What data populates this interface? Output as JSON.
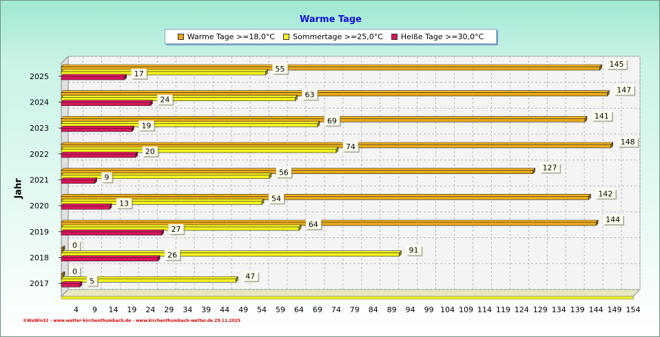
{
  "chart_data": {
    "type": "bar",
    "orientation": "horizontal",
    "title": "Warme Tage",
    "ylabel": "Jahr",
    "xlabel": "",
    "categories": [
      "2025",
      "2024",
      "2023",
      "2022",
      "2021",
      "2020",
      "2019",
      "2018",
      "2017"
    ],
    "series": [
      {
        "name": "Warme Tage >=18,0°C",
        "color": "#e6a81c",
        "values": [
          145,
          147,
          141,
          148,
          127,
          142,
          144,
          0,
          0
        ]
      },
      {
        "name": "Sommertage >=25,0°C",
        "color": "#f2f21e",
        "values": [
          55,
          63,
          69,
          74,
          56,
          54,
          64,
          91,
          47
        ]
      },
      {
        "name": "Heiße Tage >=30,0°C",
        "color": "#d8145a",
        "values": [
          17,
          24,
          19,
          20,
          9,
          13,
          27,
          26,
          5
        ]
      }
    ],
    "xticks": [
      4,
      9,
      14,
      19,
      24,
      29,
      34,
      39,
      44,
      49,
      54,
      59,
      64,
      69,
      74,
      79,
      84,
      89,
      94,
      99,
      104,
      109,
      114,
      119,
      124,
      129,
      134,
      139,
      144,
      149,
      154
    ],
    "xlim": [
      0,
      154
    ],
    "grid": true,
    "legend_position": "top"
  },
  "footer": "©WsWin32 - www.wetter-kirchenthumbach.de - www.kirchenthumbach-wetter.de 29.11.2025",
  "colors": {
    "title": "#1010e0",
    "footer": "#d40000",
    "background_top": "#9fe8d3"
  }
}
